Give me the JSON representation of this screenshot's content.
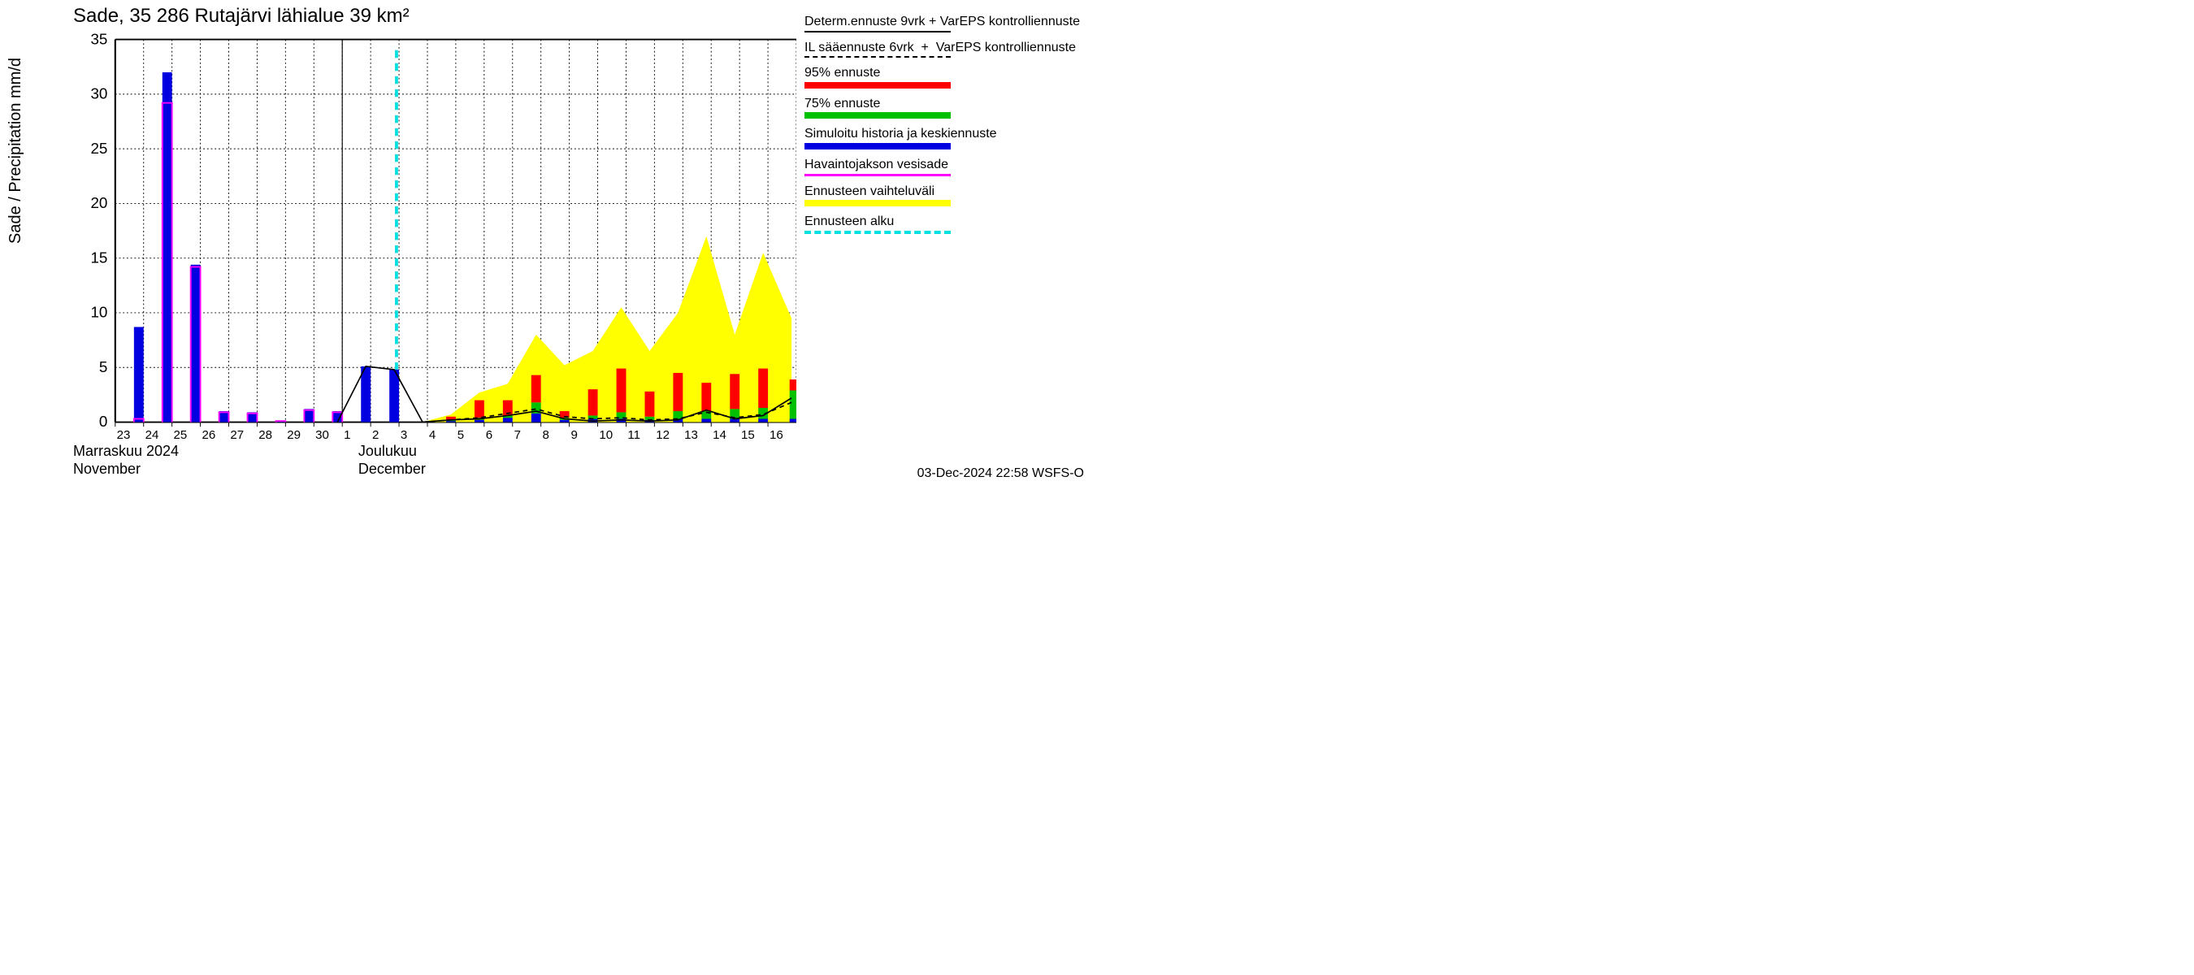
{
  "chart": {
    "type": "bar+line+area",
    "title": "Sade, 35 286 Rutajärvi lähialue 39 km²",
    "ylabel": "Sade / Precipitation   mm/d",
    "footer": "03-Dec-2024 22:58 WSFS-O",
    "ylim": [
      0,
      35
    ],
    "ytick_step": 5,
    "background_color": "#ffffff",
    "grid_color": "#000000",
    "axis_fontsize": 18,
    "title_fontsize": 24,
    "label_fontsize": 20,
    "month1": {
      "fi": "Marraskuu 2024",
      "en": "November",
      "x_index": 0
    },
    "month2": {
      "fi": "Joulukuu",
      "en": "December",
      "x_index": 10
    },
    "month_separator_index": 8,
    "forecast_start_index": 10,
    "days": [
      "23",
      "24",
      "25",
      "26",
      "27",
      "28",
      "29",
      "30",
      "1",
      "2",
      "3",
      "4",
      "5",
      "6",
      "7",
      "8",
      "9",
      "10",
      "11",
      "12",
      "13",
      "14",
      "15",
      "16"
    ],
    "colors": {
      "blue": "#0000e0",
      "magenta": "#ff00ff",
      "red": "#ff0000",
      "green": "#00c000",
      "yellow": "#ffff00",
      "cyan": "#00e0e0",
      "black": "#000000"
    },
    "bars_observed": [
      {
        "i": 1,
        "blue": 8.7,
        "mag": 0.3
      },
      {
        "i": 2,
        "blue": 32.0,
        "mag": 29.2
      },
      {
        "i": 3,
        "blue": 14.4,
        "mag": 14.2
      },
      {
        "i": 4,
        "blue": 1.0,
        "mag": 0.9
      },
      {
        "i": 5,
        "blue": 0.9,
        "mag": 0.8
      },
      {
        "i": 6,
        "blue": 0.15,
        "mag": 0.1
      },
      {
        "i": 7,
        "blue": 1.2,
        "mag": 1.1
      },
      {
        "i": 8,
        "blue": 1.0,
        "mag": 0.9
      },
      {
        "i": 9,
        "blue": 5.1,
        "mag": 0
      },
      {
        "i": 10,
        "blue": 4.8,
        "mag": 0
      }
    ],
    "bars_forecast": [
      {
        "i": 12,
        "blue": 0.1,
        "green": 0.15,
        "red": 0.5
      },
      {
        "i": 13,
        "blue": 0.2,
        "green": 0.4,
        "red": 2.0
      },
      {
        "i": 14,
        "blue": 0.4,
        "green": 0.6,
        "red": 2.0
      },
      {
        "i": 15,
        "blue": 0.8,
        "green": 1.8,
        "red": 4.3
      },
      {
        "i": 16,
        "blue": 0.2,
        "green": 0.4,
        "red": 1.0
      },
      {
        "i": 17,
        "blue": 0.3,
        "green": 0.6,
        "red": 3.0
      },
      {
        "i": 18,
        "blue": 0.3,
        "green": 0.9,
        "red": 4.9
      },
      {
        "i": 19,
        "blue": 0.2,
        "green": 0.5,
        "red": 2.8
      },
      {
        "i": 20,
        "blue": 0.3,
        "green": 1.0,
        "red": 4.5
      },
      {
        "i": 21,
        "blue": 0.3,
        "green": 1.0,
        "red": 3.6
      },
      {
        "i": 22,
        "blue": 0.3,
        "green": 1.2,
        "red": 4.4
      },
      {
        "i": 23,
        "blue": 0.3,
        "green": 1.3,
        "red": 4.9
      }
    ],
    "forecast_trailing": {
      "blue": 0.3,
      "green": 2.9,
      "red": 3.9
    },
    "yellow_area": [
      {
        "i": 11,
        "low": 0.0,
        "high": 0.0
      },
      {
        "i": 12,
        "low": 0.0,
        "high": 0.7
      },
      {
        "i": 13,
        "low": 0.0,
        "high": 2.7
      },
      {
        "i": 14,
        "low": 0.0,
        "high": 3.5
      },
      {
        "i": 15,
        "low": 0.0,
        "high": 8.0
      },
      {
        "i": 16,
        "low": 0.0,
        "high": 5.2
      },
      {
        "i": 17,
        "low": 0.0,
        "high": 6.5
      },
      {
        "i": 18,
        "low": 0.0,
        "high": 10.5
      },
      {
        "i": 19,
        "low": 0.0,
        "high": 6.5
      },
      {
        "i": 20,
        "low": 0.0,
        "high": 10.0
      },
      {
        "i": 21,
        "low": 0.0,
        "high": 17.0
      },
      {
        "i": 22,
        "low": 0.0,
        "high": 8.0
      },
      {
        "i": 23,
        "low": 0.0,
        "high": 15.5
      },
      {
        "i": 24,
        "low": 0.0,
        "high": 9.5
      }
    ],
    "black_solid": [
      {
        "i": 8,
        "y": 0.0
      },
      {
        "i": 9,
        "y": 5.1
      },
      {
        "i": 10,
        "y": 4.8
      },
      {
        "i": 11,
        "y": 0.0
      },
      {
        "i": 12,
        "y": 0.2
      },
      {
        "i": 13,
        "y": 0.3
      },
      {
        "i": 14,
        "y": 0.6
      },
      {
        "i": 15,
        "y": 1.0
      },
      {
        "i": 16,
        "y": 0.3
      },
      {
        "i": 17,
        "y": 0.1
      },
      {
        "i": 18,
        "y": 0.2
      },
      {
        "i": 19,
        "y": 0.1
      },
      {
        "i": 20,
        "y": 0.2
      },
      {
        "i": 21,
        "y": 1.1
      },
      {
        "i": 22,
        "y": 0.3
      },
      {
        "i": 23,
        "y": 0.6
      },
      {
        "i": 24,
        "y": 2.2
      }
    ],
    "black_dashed": [
      {
        "i": 11,
        "y": 0.0
      },
      {
        "i": 12,
        "y": 0.2
      },
      {
        "i": 13,
        "y": 0.4
      },
      {
        "i": 14,
        "y": 0.8
      },
      {
        "i": 15,
        "y": 1.2
      },
      {
        "i": 16,
        "y": 0.5
      },
      {
        "i": 17,
        "y": 0.3
      },
      {
        "i": 18,
        "y": 0.4
      },
      {
        "i": 19,
        "y": 0.2
      },
      {
        "i": 20,
        "y": 0.3
      },
      {
        "i": 21,
        "y": 0.9
      },
      {
        "i": 22,
        "y": 0.4
      },
      {
        "i": 23,
        "y": 0.7
      },
      {
        "i": 24,
        "y": 1.8
      }
    ]
  },
  "legend": {
    "items": [
      {
        "label": "Determ.ennuste 9vrk + VarEPS kontrolliennuste",
        "swatch": "line-solid"
      },
      {
        "label": "IL sääennuste 6vrk  +  VarEPS kontrolliennuste",
        "swatch": "line-dash"
      },
      {
        "label": "95% ennuste",
        "swatch": "red"
      },
      {
        "label": "75% ennuste",
        "swatch": "green"
      },
      {
        "label": "Simuloitu historia ja keskiennuste",
        "swatch": "blue"
      },
      {
        "label": "Havaintojakson vesisade",
        "swatch": "magenta"
      },
      {
        "label": "Ennusteen vaihteluväli",
        "swatch": "yellow"
      },
      {
        "label": "Ennusteen alku",
        "swatch": "cyan-dash"
      }
    ]
  }
}
